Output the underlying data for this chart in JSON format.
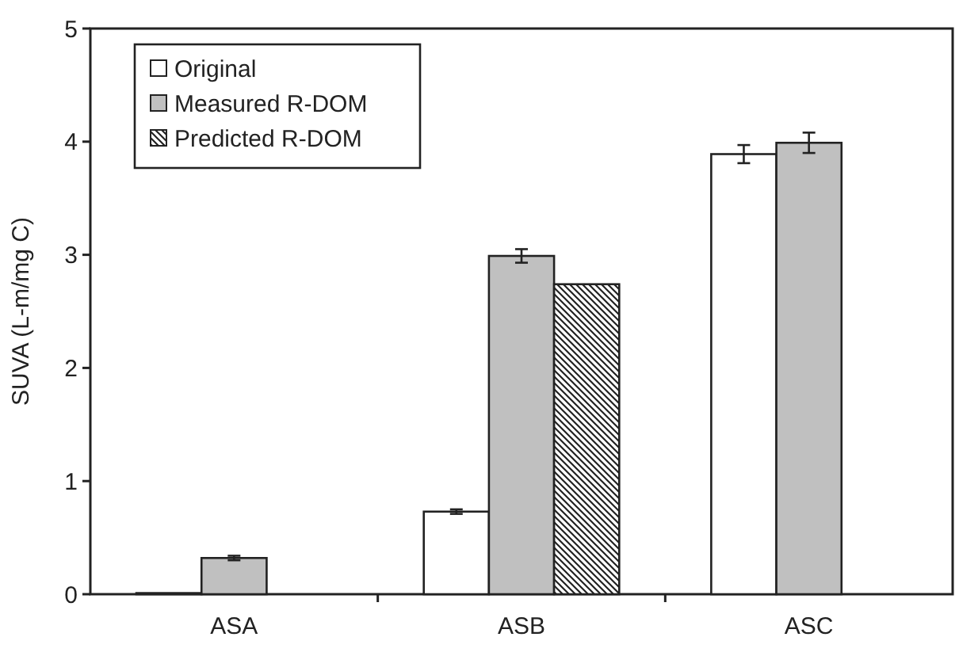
{
  "chart_data": {
    "type": "bar",
    "ylabel": "SUVA (L-m/mg C)",
    "categories": [
      "ASA",
      "ASB",
      "ASC"
    ],
    "series": [
      {
        "name": "Original",
        "color": "#ffffff",
        "values": [
          0.01,
          0.73,
          3.89
        ],
        "errors": [
          null,
          0.02,
          0.08
        ]
      },
      {
        "name": "Measured R-DOM",
        "color": "#c0c0c0",
        "values": [
          0.32,
          2.99,
          3.99
        ],
        "errors": [
          0.02,
          0.06,
          0.09
        ]
      },
      {
        "name": "Predicted R-DOM",
        "color": "#222222",
        "values": [
          null,
          2.74,
          null
        ]
      }
    ],
    "ylim": [
      0,
      5
    ],
    "yticks": [
      0,
      1,
      2,
      3,
      4,
      5
    ],
    "legend": "top left"
  }
}
